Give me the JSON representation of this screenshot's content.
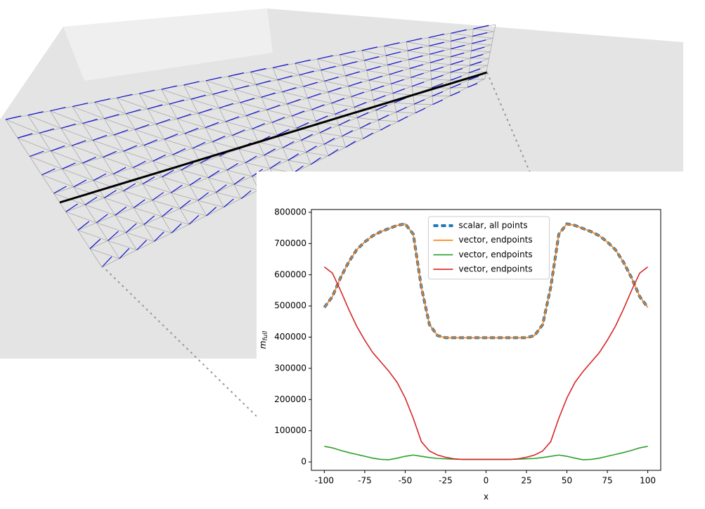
{
  "chart_data": {
    "type": "line",
    "xlabel": "x",
    "ylabel": "m",
    "ylabel_sub": "full",
    "x": [
      -100,
      -95,
      -90,
      -85,
      -80,
      -75,
      -70,
      -65,
      -60,
      -55,
      -50,
      -45,
      -40,
      -35,
      -30,
      -25,
      -20,
      -15,
      -10,
      -5,
      0,
      5,
      10,
      15,
      20,
      25,
      30,
      35,
      40,
      45,
      50,
      55,
      60,
      65,
      70,
      75,
      80,
      85,
      90,
      95,
      100
    ],
    "series": [
      {
        "name": "scalar, all points",
        "color": "#1f77b4",
        "dashed": true,
        "values": [
          495000,
          530000,
          590000,
          640000,
          680000,
          705000,
          725000,
          738000,
          748000,
          758000,
          763000,
          730000,
          560000,
          440000,
          405000,
          398000,
          398000,
          398000,
          398000,
          398000,
          398000,
          398000,
          398000,
          398000,
          398000,
          398000,
          405000,
          440000,
          560000,
          730000,
          763000,
          758000,
          748000,
          738000,
          725000,
          705000,
          680000,
          640000,
          590000,
          530000,
          495000
        ]
      },
      {
        "name": "vector, endpoints",
        "color": "#ff7f0e",
        "dashed": false,
        "values": [
          495000,
          530000,
          590000,
          640000,
          680000,
          705000,
          725000,
          738000,
          748000,
          758000,
          763000,
          730000,
          560000,
          440000,
          405000,
          398000,
          398000,
          398000,
          398000,
          398000,
          398000,
          398000,
          398000,
          398000,
          398000,
          398000,
          405000,
          440000,
          560000,
          730000,
          763000,
          758000,
          748000,
          738000,
          725000,
          705000,
          680000,
          640000,
          590000,
          530000,
          495000
        ]
      },
      {
        "name": "vector, endpoints",
        "color": "#2ca02c",
        "dashed": false,
        "values": [
          50000,
          45000,
          37000,
          30000,
          24000,
          18000,
          12000,
          8000,
          7000,
          12000,
          18000,
          22000,
          18000,
          14000,
          11000,
          10000,
          9000,
          8000,
          8000,
          8000,
          8000,
          8000,
          8000,
          8000,
          9000,
          10000,
          11000,
          14000,
          18000,
          22000,
          18000,
          12000,
          7000,
          8000,
          12000,
          18000,
          24000,
          30000,
          37000,
          45000,
          50000
        ]
      },
      {
        "name": "vector, endpoints",
        "color": "#d62728",
        "dashed": false,
        "values": [
          625000,
          605000,
          550000,
          490000,
          435000,
          390000,
          350000,
          320000,
          290000,
          255000,
          205000,
          140000,
          65000,
          35000,
          22000,
          15000,
          10000,
          8000,
          8000,
          8000,
          8000,
          8000,
          8000,
          8000,
          10000,
          15000,
          22000,
          35000,
          65000,
          140000,
          205000,
          255000,
          290000,
          320000,
          350000,
          390000,
          435000,
          490000,
          550000,
          605000,
          625000
        ]
      }
    ],
    "xlim": [
      -108,
      108
    ],
    "xticks": [
      -100,
      -75,
      -50,
      -25,
      0,
      25,
      50,
      75,
      100
    ],
    "ylim": [
      -27000,
      809000
    ],
    "yticks": [
      0,
      100000,
      200000,
      300000,
      400000,
      500000,
      600000,
      700000,
      800000
    ],
    "legend": "upper center",
    "grid": false
  }
}
